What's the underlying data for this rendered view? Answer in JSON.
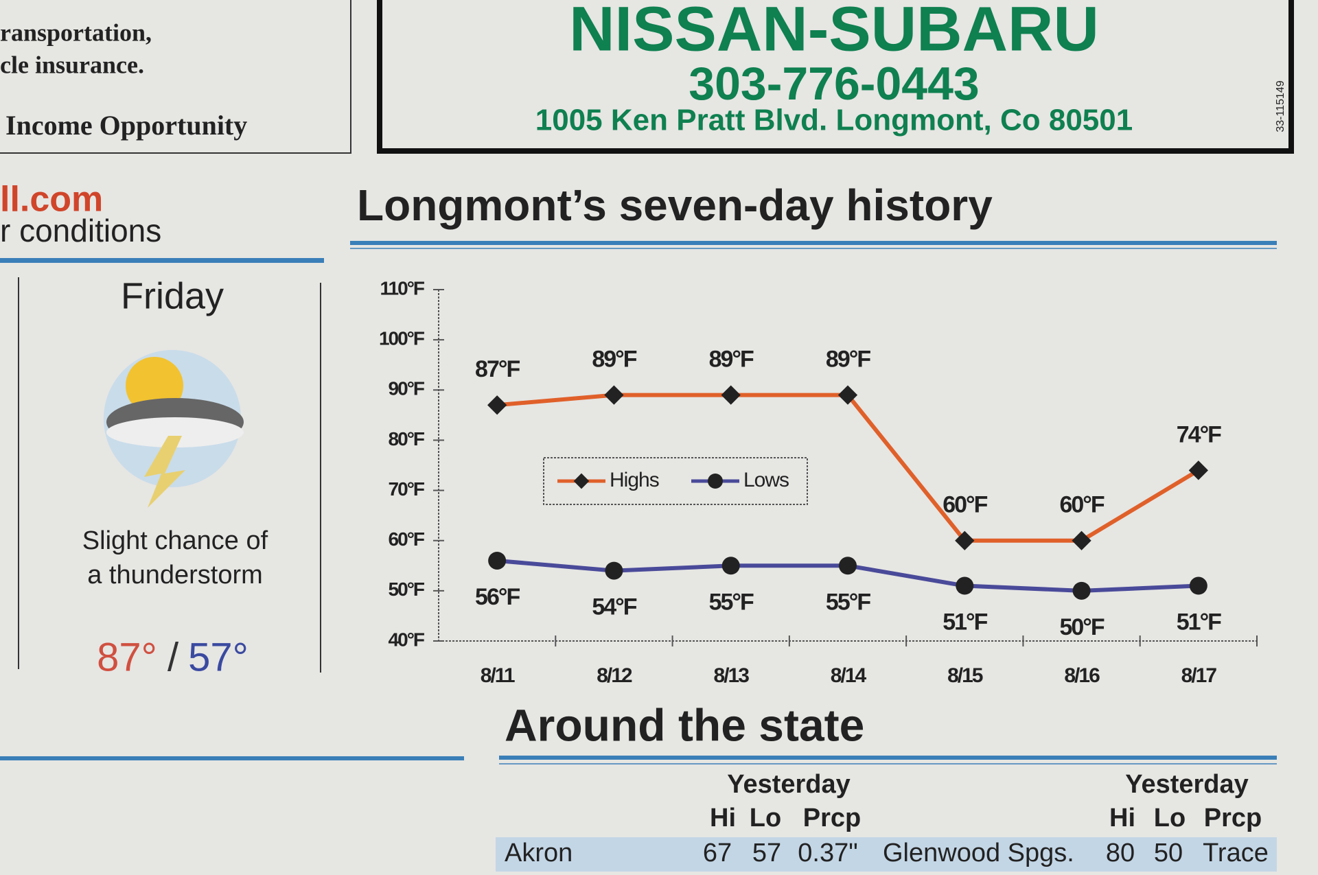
{
  "left_ad": {
    "lines": [
      "ransportation,",
      "cle insurance.",
      "Income Opportunity"
    ]
  },
  "ad": {
    "name": "NISSAN-SUBARU",
    "phone": "303-776-0443",
    "address": "1005 Ken Pratt Blvd. Longmont, Co 80501",
    "code": "33-115149"
  },
  "site": {
    "url": "ll.com",
    "tagline": "r conditions"
  },
  "forecast": {
    "day": "Friday",
    "text": [
      "Slight chance of",
      "a thunderstorm"
    ],
    "high": "87°",
    "separator": "/",
    "low": "57°"
  },
  "chart_data": {
    "type": "line",
    "title": "Longmont’s seven-day history",
    "categories": [
      "8/11",
      "8/12",
      "8/13",
      "8/14",
      "8/15",
      "8/16",
      "8/17"
    ],
    "series": [
      {
        "name": "Highs",
        "color": "#e0602a",
        "values": [
          87,
          89,
          89,
          89,
          60,
          60,
          74
        ],
        "value_labels": [
          "87°F",
          "89°F",
          "89°F",
          "89°F",
          "60°F",
          "60°F",
          "74°F"
        ]
      },
      {
        "name": "Lows",
        "color": "#4a4a9a",
        "values": [
          56,
          54,
          55,
          55,
          51,
          50,
          51
        ],
        "value_labels": [
          "56°F",
          "54°F",
          "55°F",
          "55°F",
          "51°F",
          "50°F",
          "51°F"
        ]
      }
    ],
    "ylim": [
      40,
      110
    ],
    "yticks": [
      {
        "value": 40,
        "label": "40°F"
      },
      {
        "value": 50,
        "label": "50°F"
      },
      {
        "value": 60,
        "label": "60°F"
      },
      {
        "value": 70,
        "label": "70°F"
      },
      {
        "value": 80,
        "label": "80°F"
      },
      {
        "value": 90,
        "label": "90°F"
      },
      {
        "value": 100,
        "label": "100°F"
      },
      {
        "value": 110,
        "label": "110°F"
      }
    ],
    "grid": false
  },
  "state": {
    "title": "Around the state",
    "headers": [
      {
        "group": "Yesterday",
        "columns": [
          "Hi",
          "Lo",
          "Prcp"
        ]
      },
      {
        "group": "Yesterday",
        "columns": [
          "Hi",
          "Lo",
          "Prcp"
        ]
      }
    ],
    "rows": [
      [
        "Akron",
        67,
        57,
        "0.37\"",
        "Glenwood Spgs.",
        80,
        50,
        "Trace"
      ]
    ]
  }
}
